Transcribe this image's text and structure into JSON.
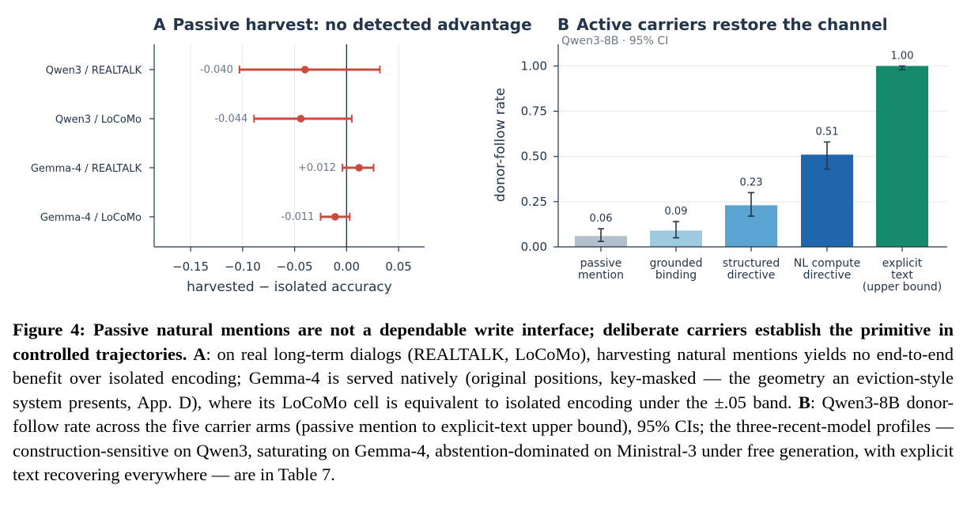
{
  "chart_data": [
    {
      "type": "forest",
      "panel_letter": "A",
      "title": "Passive harvest: no detected advantage",
      "xlabel": "harvested − isolated accuracy",
      "xlim": [
        -0.185,
        0.075
      ],
      "xticks": [
        -0.15,
        -0.1,
        -0.05,
        0.0,
        0.05
      ],
      "xtick_labels": [
        "−0.15",
        "−0.10",
        "−0.05",
        "0.00",
        "0.05"
      ],
      "grid": "vertical",
      "reference_line": 0,
      "rows": [
        {
          "label": "Qwen3 / REALTALK",
          "estimate": -0.04,
          "ci": [
            -0.103,
            0.032
          ],
          "value_label": "-0.040"
        },
        {
          "label": "Qwen3 / LoCoMo",
          "estimate": -0.044,
          "ci": [
            -0.089,
            0.005
          ],
          "value_label": "-0.044"
        },
        {
          "label": "Gemma-4 / REALTALK",
          "estimate": 0.012,
          "ci": [
            -0.004,
            0.026
          ],
          "value_label": "+0.012"
        },
        {
          "label": "Gemma-4 / LoCoMo",
          "estimate": -0.011,
          "ci": [
            -0.025,
            0.003
          ],
          "value_label": "-0.011"
        }
      ],
      "color": "#c84b3c"
    },
    {
      "type": "bar",
      "panel_letter": "B",
      "title": "Active carriers restore the channel",
      "subtitle": "Qwen3-8B · 95% CI",
      "ylabel": "donor-follow rate",
      "ylim": [
        0,
        1.12
      ],
      "yticks": [
        0.0,
        0.25,
        0.5,
        0.75,
        1.0
      ],
      "ytick_labels": [
        "0.00",
        "0.25",
        "0.50",
        "0.75",
        "1.00"
      ],
      "grid": "horizontal",
      "bars": [
        {
          "category": [
            "passive",
            "mention"
          ],
          "value": 0.06,
          "ci": [
            0.03,
            0.1
          ],
          "value_label": "0.06",
          "color": "#b3bfcb"
        },
        {
          "category": [
            "grounded",
            "binding"
          ],
          "value": 0.09,
          "ci": [
            0.05,
            0.14
          ],
          "value_label": "0.09",
          "color": "#9ecae1"
        },
        {
          "category": [
            "structured",
            "directive"
          ],
          "value": 0.23,
          "ci": [
            0.17,
            0.3
          ],
          "value_label": "0.23",
          "color": "#5ba3d0"
        },
        {
          "category": [
            "NL compute",
            "directive"
          ],
          "value": 0.51,
          "ci": [
            0.43,
            0.58
          ],
          "value_label": "0.51",
          "color": "#2166ac"
        },
        {
          "category": [
            "explicit",
            "text",
            "(upper bound)"
          ],
          "value": 1.0,
          "ci": [
            0.98,
            1.0
          ],
          "value_label": "1.00",
          "color": "#158a6c"
        }
      ]
    }
  ],
  "caption": {
    "label": "Figure 4:",
    "bold_text": "Passive natural mentions are not a dependable write interface; deliberate carriers establish the primitive in controlled trajectories.",
    "part_a_letter": "A",
    "part_a_text": ": on real long-term dialogs (REALTALK, LoCoMo), harvesting natural mentions yields no end-to-end benefit over isolated encoding; Gemma-4 is served natively (original positions, key-masked — the geometry an eviction-style system presents, App. D), where its LoCoMo cell is equivalent to isolated encoding under the ±.05 band.",
    "part_b_letter": "B",
    "part_b_text": ": Qwen3-8B donor-follow rate across the five carrier arms (passive mention to explicit-text upper bound), 95% CIs; the three-recent-model profiles — construction-sensitive on Qwen3, saturating on Gemma-4, abstention-dominated on Ministral-3 under free generation, with explicit text recovering everywhere — are in Table 7."
  }
}
